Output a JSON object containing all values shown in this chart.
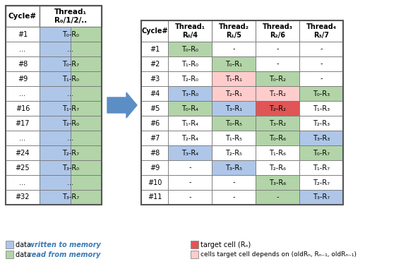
{
  "left_table": {
    "headers": [
      "Cycle#",
      "Thread₁\nR₀/1/2/.."
    ],
    "rows": [
      [
        "#1",
        "T₀-R₀"
      ],
      [
        "...",
        "..."
      ],
      [
        "#8",
        "T₀-R₇"
      ],
      [
        "#9",
        "T₁-R₀"
      ],
      [
        "...",
        "..."
      ],
      [
        "#16",
        "T₁-R₇"
      ],
      [
        "#17",
        "T₂-R₀"
      ],
      [
        "...",
        "..."
      ],
      [
        "#24",
        "T₂-R₇"
      ],
      [
        "#25",
        "T₃-R₀"
      ],
      [
        "...",
        "..."
      ],
      [
        "#32",
        "T₃-R₇"
      ]
    ]
  },
  "right_table": {
    "headers": [
      "Cycle#",
      "Thread₁\nR₀/4",
      "Thread₂\nR₁/5",
      "Thread₃\nR₂/6",
      "Thread₄\nR₃/7"
    ],
    "rows": [
      [
        "#1",
        "T₀-R₀",
        "-",
        "-",
        "-"
      ],
      [
        "#2",
        "T₁-R₀",
        "T₀-R₁",
        "-",
        "-"
      ],
      [
        "#3",
        "T₂-R₀",
        "T₁-R₁",
        "T₀-R₂",
        "-"
      ],
      [
        "#4",
        "T₃-R₀",
        "T₂-R₁",
        "T₁-R₂",
        "T₀-R₃"
      ],
      [
        "#5",
        "T₀-R₄",
        "T₃-R₁",
        "T₂-R₂",
        "T₁-R₃"
      ],
      [
        "#6",
        "T₁-R₄",
        "T₀-R₅",
        "T₃-R₂",
        "T₂-R₃"
      ],
      [
        "#7",
        "T₂-R₄",
        "T₁-R₅",
        "T₀-R₆",
        "T₃-R₃"
      ],
      [
        "#8",
        "T₃-R₄",
        "T₂-R₅",
        "T₁-R₆",
        "T₀-R₇"
      ],
      [
        "#9",
        "-",
        "T₃-R₅",
        "T₂-R₆",
        "T₁-R₇"
      ],
      [
        "#10",
        "-",
        "-",
        "T₃-R₆",
        "T₂-R₇"
      ],
      [
        "#11",
        "-",
        "-",
        "-",
        "T₃-R₇"
      ]
    ],
    "cell_colors": [
      [
        "white",
        "#b2d4a8",
        "white",
        "white",
        "white"
      ],
      [
        "white",
        "white",
        "#b2d4a8",
        "white",
        "white"
      ],
      [
        "white",
        "white",
        "#ffcccc",
        "#b2d4a8",
        "white"
      ],
      [
        "white",
        "#aec6e8",
        "#ffcccc",
        "#ffcccc",
        "#b2d4a8"
      ],
      [
        "white",
        "#b2d4a8",
        "#aec6e8",
        "#e05555",
        "white"
      ],
      [
        "white",
        "white",
        "#b2d4a8",
        "#b2d4a8",
        "white"
      ],
      [
        "white",
        "white",
        "white",
        "#b2d4a8",
        "#aec6e8"
      ],
      [
        "white",
        "#aec6e8",
        "white",
        "white",
        "#b2d4a8"
      ],
      [
        "white",
        "white",
        "#aec6e8",
        "white",
        "white"
      ],
      [
        "white",
        "white",
        "white",
        "#b2d4a8",
        "white"
      ],
      [
        "white",
        "white",
        "white",
        "#b2d4a8",
        "#aec6e8"
      ]
    ]
  },
  "legend": {
    "blue_color": "#aec6e8",
    "green_color": "#b2d4a8",
    "red_color": "#e05555",
    "pink_color": "#ffcccc",
    "blue_text": "written to memory",
    "green_text": "read from memory",
    "red_text": "target cell (R",
    "pink_text": "cells target cell depends on (oldR"
  },
  "arrow_color": "#5b8ec4",
  "fig_width": 5.85,
  "fig_height": 3.74,
  "dpi": 100
}
